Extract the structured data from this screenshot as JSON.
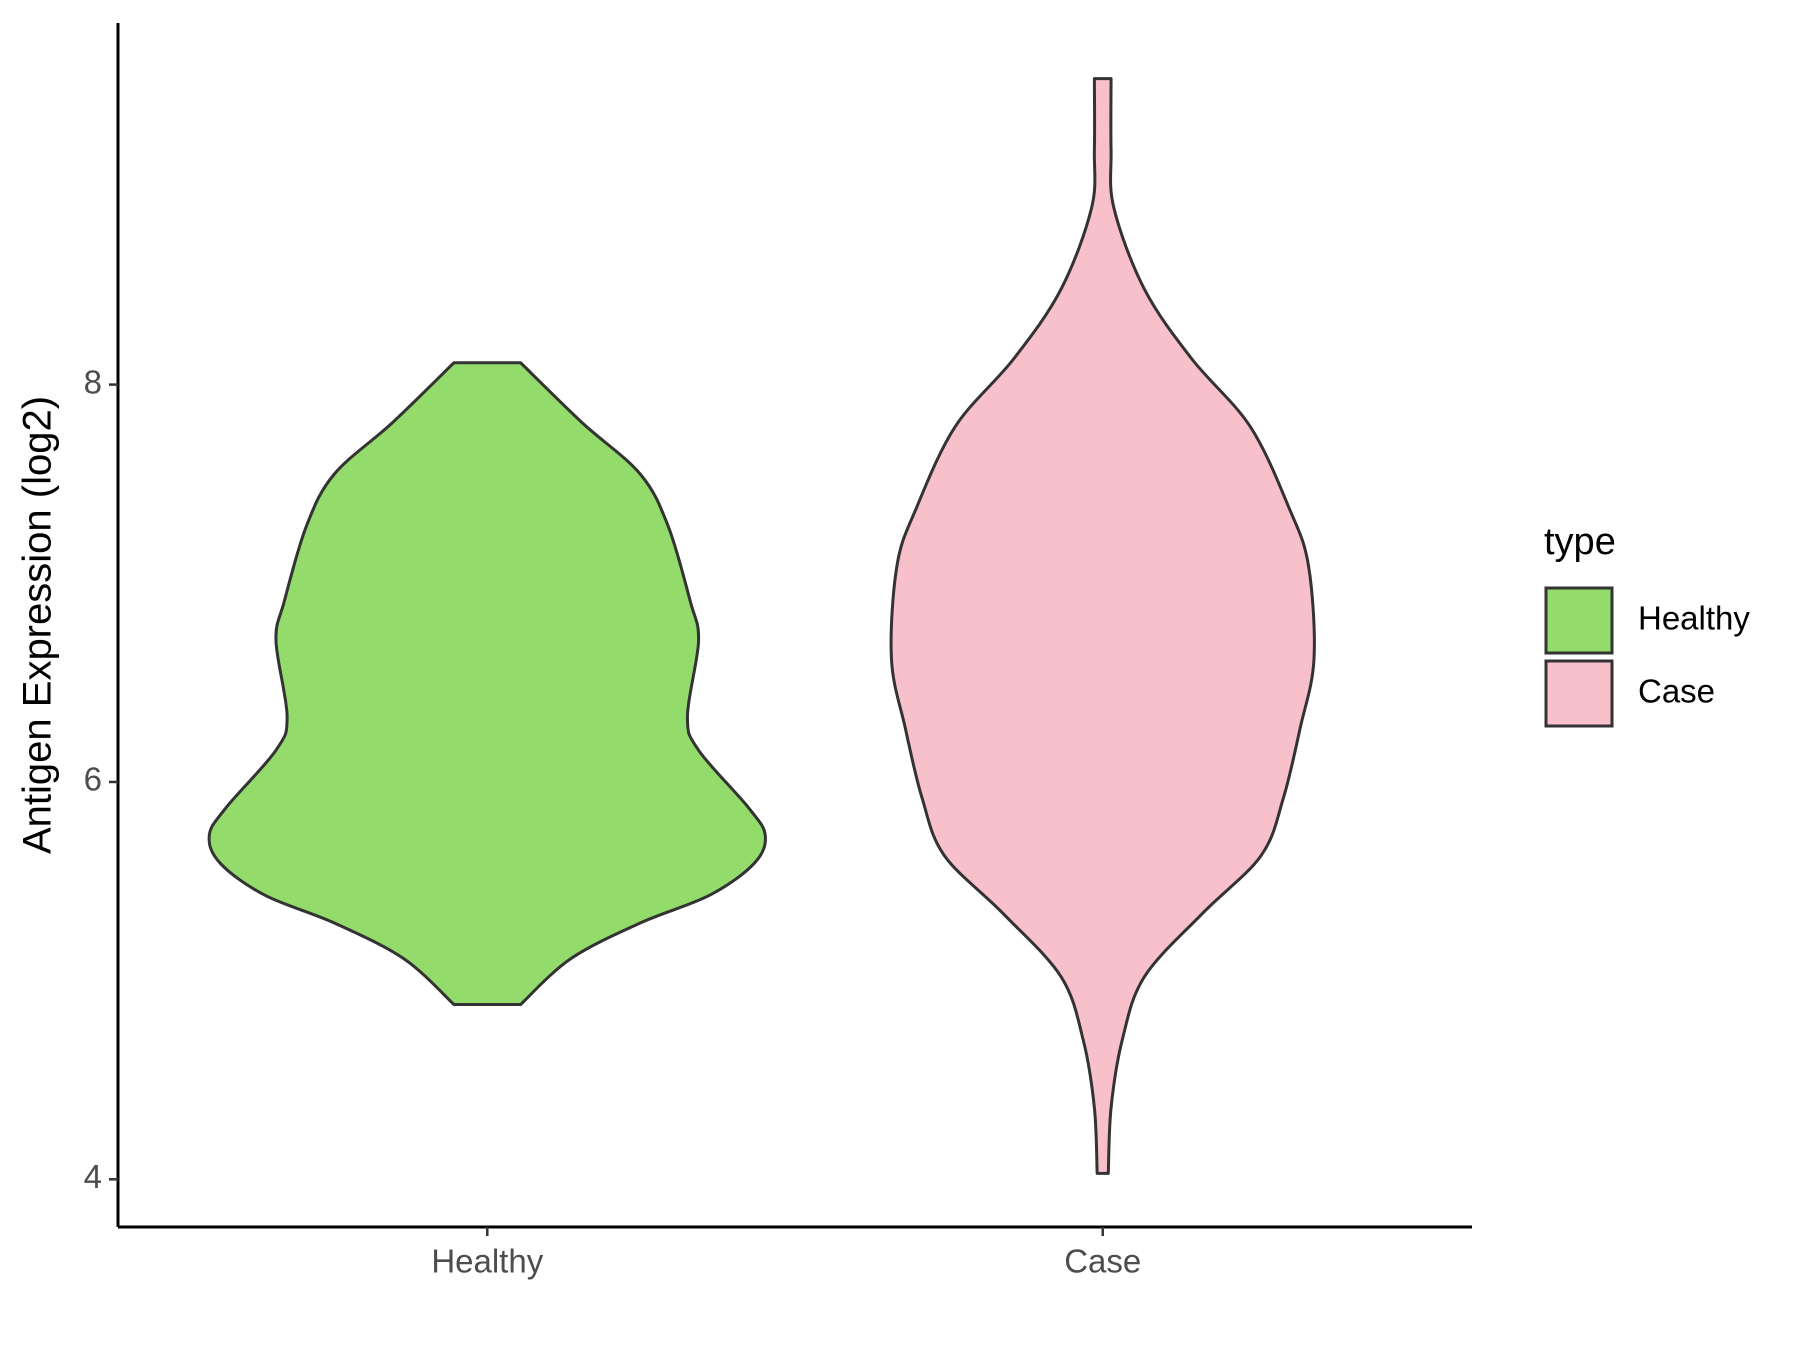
{
  "chart_data": {
    "type": "violin",
    "y_label": "Antigen Expression (log2)",
    "categories": [
      "Healthy",
      "Case"
    ],
    "legend_title": "type",
    "legend": "right",
    "ylim": [
      3.76,
      9.82
    ],
    "yticks": [
      4,
      6,
      8
    ],
    "series": [
      {
        "name": "Healthy",
        "color": "#93dc6b",
        "y": [
          4.88,
          5.11,
          5.29,
          5.43,
          5.59,
          5.73,
          5.87,
          6.16,
          6.33,
          6.71,
          6.91,
          7.29,
          7.55,
          7.81,
          8.11
        ],
        "density": [
          0.12,
          0.3,
          0.55,
          0.8,
          0.96,
          1.0,
          0.94,
          0.76,
          0.72,
          0.76,
          0.73,
          0.65,
          0.55,
          0.34,
          0.12
        ]
      },
      {
        "name": "Case",
        "color": "#f7c0cb",
        "y": [
          4.03,
          4.36,
          4.7,
          5.02,
          5.34,
          5.63,
          5.92,
          6.27,
          6.62,
          7.09,
          7.38,
          7.79,
          8.13,
          8.48,
          8.89,
          9.18,
          9.54
        ],
        "density": [
          0.02,
          0.03,
          0.07,
          0.15,
          0.36,
          0.57,
          0.65,
          0.71,
          0.76,
          0.74,
          0.67,
          0.53,
          0.32,
          0.15,
          0.04,
          0.03,
          0.03
        ]
      }
    ]
  }
}
